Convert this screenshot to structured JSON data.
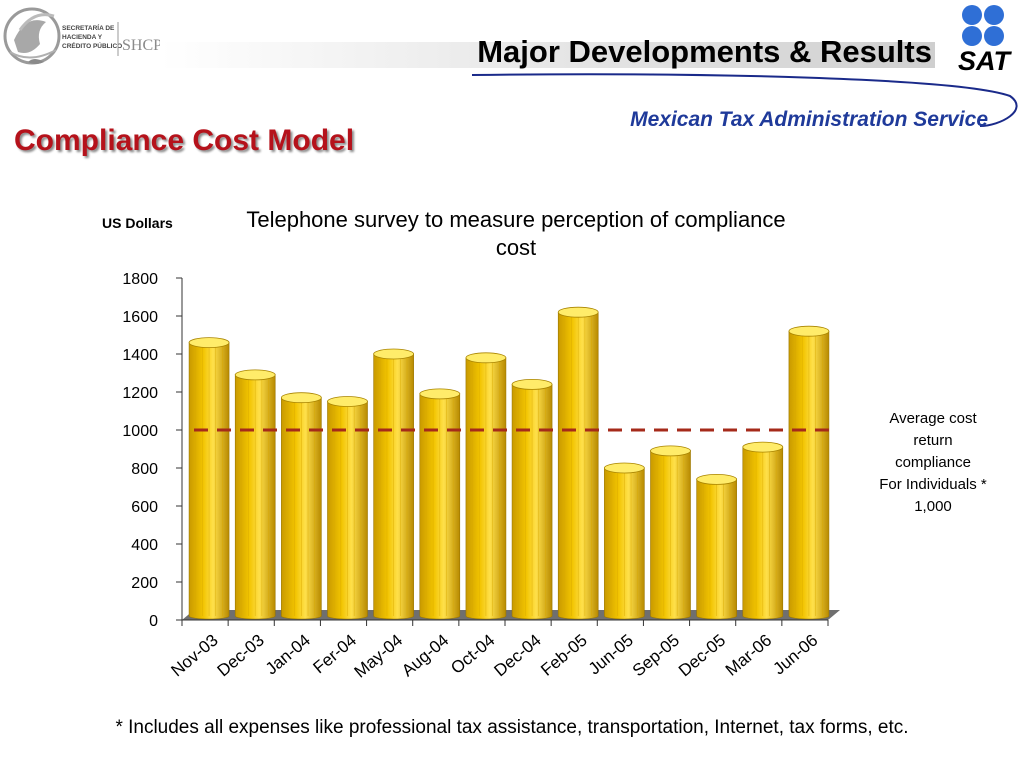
{
  "header": {
    "title": "Major Developments & Results",
    "subtitle": "Mexican Tax Administration Service",
    "left_logo": {
      "icon": "mexican-eagle-seal-icon",
      "text_lines": [
        "SECRETARÍA DE",
        "HACIENDA Y",
        "CRÉDITO PÚBLICO"
      ],
      "acronym": "SHCP"
    },
    "right_logo": {
      "icon": "sat-dots-icon",
      "text": "SAT"
    }
  },
  "slide": {
    "title": "Compliance Cost Model"
  },
  "chart_data": {
    "type": "bar",
    "title": "Telephone survey to measure perception of compliance cost",
    "y_unit_label": "US Dollars",
    "categories": [
      "Nov-03",
      "Dec-03",
      "Jan-04",
      "Fer-04",
      "May-04",
      "Aug-04",
      "Oct-04",
      "Dec-04",
      "Feb-05",
      "Jun-05",
      "Sep-05",
      "Dec-05",
      "Mar-06",
      "Jun-06"
    ],
    "values": [
      1460,
      1290,
      1170,
      1150,
      1400,
      1190,
      1380,
      1240,
      1620,
      800,
      890,
      740,
      910,
      1520
    ],
    "ylim": [
      0,
      1800
    ],
    "yticks": [
      0,
      200,
      400,
      600,
      800,
      1000,
      1200,
      1400,
      1600,
      1800
    ],
    "bar_color": "#f2c400",
    "reference_line": {
      "value": 1000,
      "color": "#a52a1a",
      "style": "dashed"
    },
    "annotation": [
      "Average cost",
      "return",
      "compliance",
      "For Individuals *",
      "1,000"
    ],
    "grid": false,
    "legend": "none"
  },
  "footnote": "* Includes all expenses like  professional tax assistance, transportation, Internet, tax forms, etc."
}
